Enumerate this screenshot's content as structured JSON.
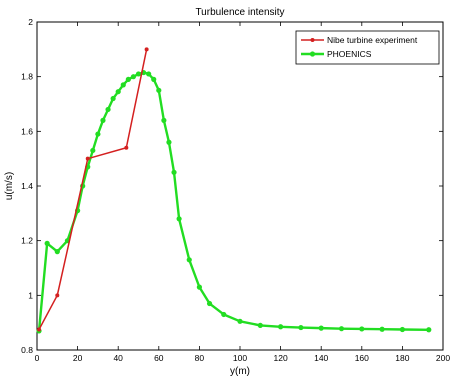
{
  "chart_data": {
    "type": "line",
    "title": "Turbulence intensity",
    "xlabel": "y(m)",
    "ylabel": "u(m/s)",
    "xlim": [
      0,
      200
    ],
    "ylim": [
      0.8,
      2.0
    ],
    "xticks": [
      "0",
      "20",
      "40",
      "60",
      "80",
      "100",
      "120",
      "140",
      "160",
      "180",
      "200"
    ],
    "yticks": [
      "0.8",
      "1",
      "1.2",
      "1.4",
      "1.6",
      "1.8",
      "2"
    ],
    "grid": false,
    "legend_position": "top-right",
    "series": [
      {
        "name": "Nibe turbine experiment",
        "color": "#d42020",
        "x": [
          1,
          10,
          25,
          44,
          54
        ],
        "y": [
          0.875,
          1.0,
          1.5,
          1.54,
          1.9
        ]
      },
      {
        "name": "PHOENICS",
        "color": "#22dd22",
        "x": [
          1,
          5,
          10,
          15,
          20,
          22.5,
          25,
          27.5,
          30,
          32.5,
          35,
          37.5,
          40,
          42.5,
          45,
          47.5,
          50,
          52.5,
          55,
          57.5,
          60,
          62.5,
          65,
          67.5,
          70,
          75,
          80,
          85,
          92,
          100,
          110,
          120,
          130,
          140,
          150,
          160,
          170,
          180,
          193
        ],
        "y": [
          0.87,
          1.19,
          1.16,
          1.2,
          1.31,
          1.4,
          1.47,
          1.53,
          1.59,
          1.64,
          1.68,
          1.72,
          1.745,
          1.77,
          1.79,
          1.8,
          1.81,
          1.815,
          1.81,
          1.79,
          1.75,
          1.64,
          1.56,
          1.45,
          1.28,
          1.13,
          1.03,
          0.97,
          0.93,
          0.905,
          0.89,
          0.885,
          0.882,
          0.88,
          0.878,
          0.877,
          0.876,
          0.875,
          0.874
        ]
      }
    ]
  }
}
